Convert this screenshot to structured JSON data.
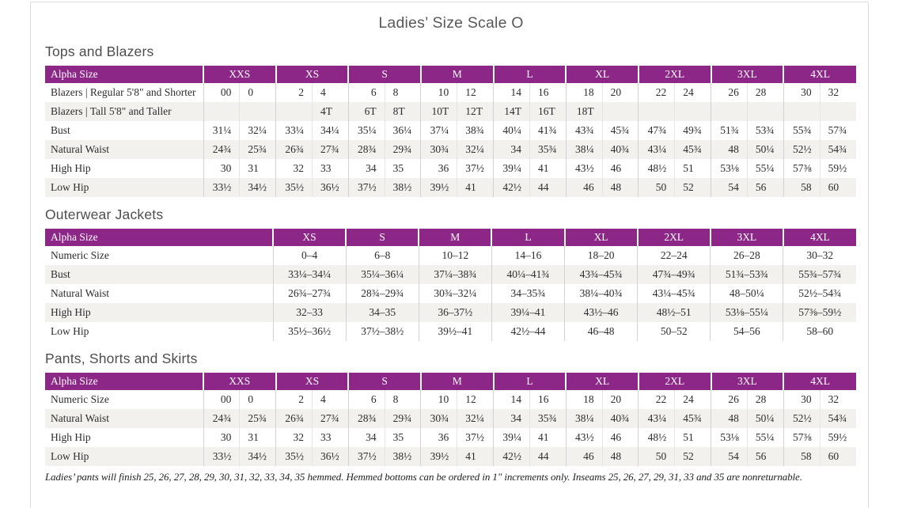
{
  "page": {
    "title": "Ladies’ Size Scale O",
    "footnote": "Ladies’ pants will finish 25, 26, 27, 28, 29, 30, 31, 32, 33, 34, 35 hemmed. Hemmed bottoms can be ordered in 1\" increments only. Inseams 25, 26, 27, 29, 31, 33 and 35 are nonreturnable."
  },
  "colors": {
    "header_purple": "#8C2788",
    "stripe": "#F2F1EE",
    "border_group": "#D8CEDA",
    "border_inner": "#E8E2E6",
    "frame": "#DCDCDC",
    "text": "#2E2C2C",
    "heading": "#4D4D4D",
    "title": "#595959"
  },
  "tables": [
    {
      "heading": "Tops and Blazers",
      "type": "paired",
      "label_header": "Alpha Size",
      "sizes": [
        "XXS",
        "XS",
        "S",
        "M",
        "L",
        "XL",
        "2XL",
        "3XL",
        "4XL"
      ],
      "rows": [
        {
          "label": "Blazers  |  Regular 5'8\" and Shorter",
          "values": [
            "00",
            "0",
            "2",
            "4",
            "6",
            "8",
            "10",
            "12",
            "14",
            "16",
            "18",
            "20",
            "22",
            "24",
            "26",
            "28",
            "30",
            "32"
          ]
        },
        {
          "label": "Blazers  |  Tall 5'8\" and Taller",
          "values": [
            "",
            "",
            "",
            "4T",
            "6T",
            "8T",
            "10T",
            "12T",
            "14T",
            "16T",
            "18T",
            "",
            "",
            "",
            "",
            "",
            "",
            ""
          ]
        },
        {
          "label": "Bust",
          "values": [
            "31¼",
            "32¼",
            "33¼",
            "34¼",
            "35¼",
            "36¼",
            "37¼",
            "38¾",
            "40¼",
            "41¾",
            "43¾",
            "45¾",
            "47¾",
            "49¾",
            "51¾",
            "53¾",
            "55¾",
            "57¾"
          ]
        },
        {
          "label": "Natural Waist",
          "values": [
            "24¾",
            "25¾",
            "26¾",
            "27¾",
            "28¾",
            "29¾",
            "30¾",
            "32¼",
            "34",
            "35¾",
            "38¼",
            "40¾",
            "43¼",
            "45¾",
            "48",
            "50¼",
            "52½",
            "54¾"
          ]
        },
        {
          "label": "High Hip",
          "values": [
            "30",
            "31",
            "32",
            "33",
            "34",
            "35",
            "36",
            "37½",
            "39¼",
            "41",
            "43½",
            "46",
            "48½",
            "51",
            "53⅛",
            "55¼",
            "57⅜",
            "59½"
          ]
        },
        {
          "label": "Low Hip",
          "values": [
            "33½",
            "34½",
            "35½",
            "36½",
            "37½",
            "38½",
            "39½",
            "41",
            "42½",
            "44",
            "46",
            "48",
            "50",
            "52",
            "54",
            "56",
            "58",
            "60"
          ]
        }
      ]
    },
    {
      "heading": "Outerwear Jackets",
      "type": "single",
      "label_header": "Alpha Size",
      "sizes": [
        "XS",
        "S",
        "M",
        "L",
        "XL",
        "2XL",
        "3XL",
        "4XL"
      ],
      "rows": [
        {
          "label": "Numeric Size",
          "values": [
            "0–4",
            "6–8",
            "10–12",
            "14–16",
            "18–20",
            "22–24",
            "26–28",
            "30–32"
          ]
        },
        {
          "label": "Bust",
          "values": [
            "33¼–34¼",
            "35¼–36¼",
            "37¼–38¾",
            "40¼–41¾",
            "43¾–45¾",
            "47¾–49¾",
            "51¾–53¾",
            "55¾–57¾"
          ]
        },
        {
          "label": "Natural Waist",
          "values": [
            "26¾–27¾",
            "28¾–29¾",
            "30¾–32¼",
            "34–35¾",
            "38¼–40¾",
            "43¼–45¾",
            "48–50¼",
            "52½–54¾"
          ]
        },
        {
          "label": "High Hip",
          "values": [
            "32–33",
            "34–35",
            "36–37½",
            "39¼–41",
            "43½–46",
            "48½–51",
            "53⅛–55¼",
            "57⅜–59½"
          ]
        },
        {
          "label": "Low Hip",
          "values": [
            "35½–36½",
            "37½–38½",
            "39½–41",
            "42½–44",
            "46–48",
            "50–52",
            "54–56",
            "58–60"
          ]
        }
      ]
    },
    {
      "heading": "Pants, Shorts and Skirts",
      "type": "paired",
      "label_header": "Alpha Size",
      "sizes": [
        "XXS",
        "XS",
        "S",
        "M",
        "L",
        "XL",
        "2XL",
        "3XL",
        "4XL"
      ],
      "rows": [
        {
          "label": "Numeric Size",
          "values": [
            "00",
            "0",
            "2",
            "4",
            "6",
            "8",
            "10",
            "12",
            "14",
            "16",
            "18",
            "20",
            "22",
            "24",
            "26",
            "28",
            "30",
            "32"
          ]
        },
        {
          "label": "Natural Waist",
          "values": [
            "24¾",
            "25¾",
            "26¾",
            "27¾",
            "28¾",
            "29¾",
            "30¾",
            "32¼",
            "34",
            "35¾",
            "38¼",
            "40¾",
            "43¼",
            "45¾",
            "48",
            "50¼",
            "52½",
            "54¾"
          ]
        },
        {
          "label": "High Hip",
          "values": [
            "30",
            "31",
            "32",
            "33",
            "34",
            "35",
            "36",
            "37½",
            "39¼",
            "41",
            "43½",
            "46",
            "48½",
            "51",
            "53⅛",
            "55¼",
            "57⅜",
            "59½"
          ]
        },
        {
          "label": "Low Hip",
          "values": [
            "33½",
            "34½",
            "35½",
            "36½",
            "37½",
            "38½",
            "39½",
            "41",
            "42½",
            "44",
            "46",
            "48",
            "50",
            "52",
            "54",
            "56",
            "58",
            "60"
          ]
        }
      ]
    }
  ]
}
